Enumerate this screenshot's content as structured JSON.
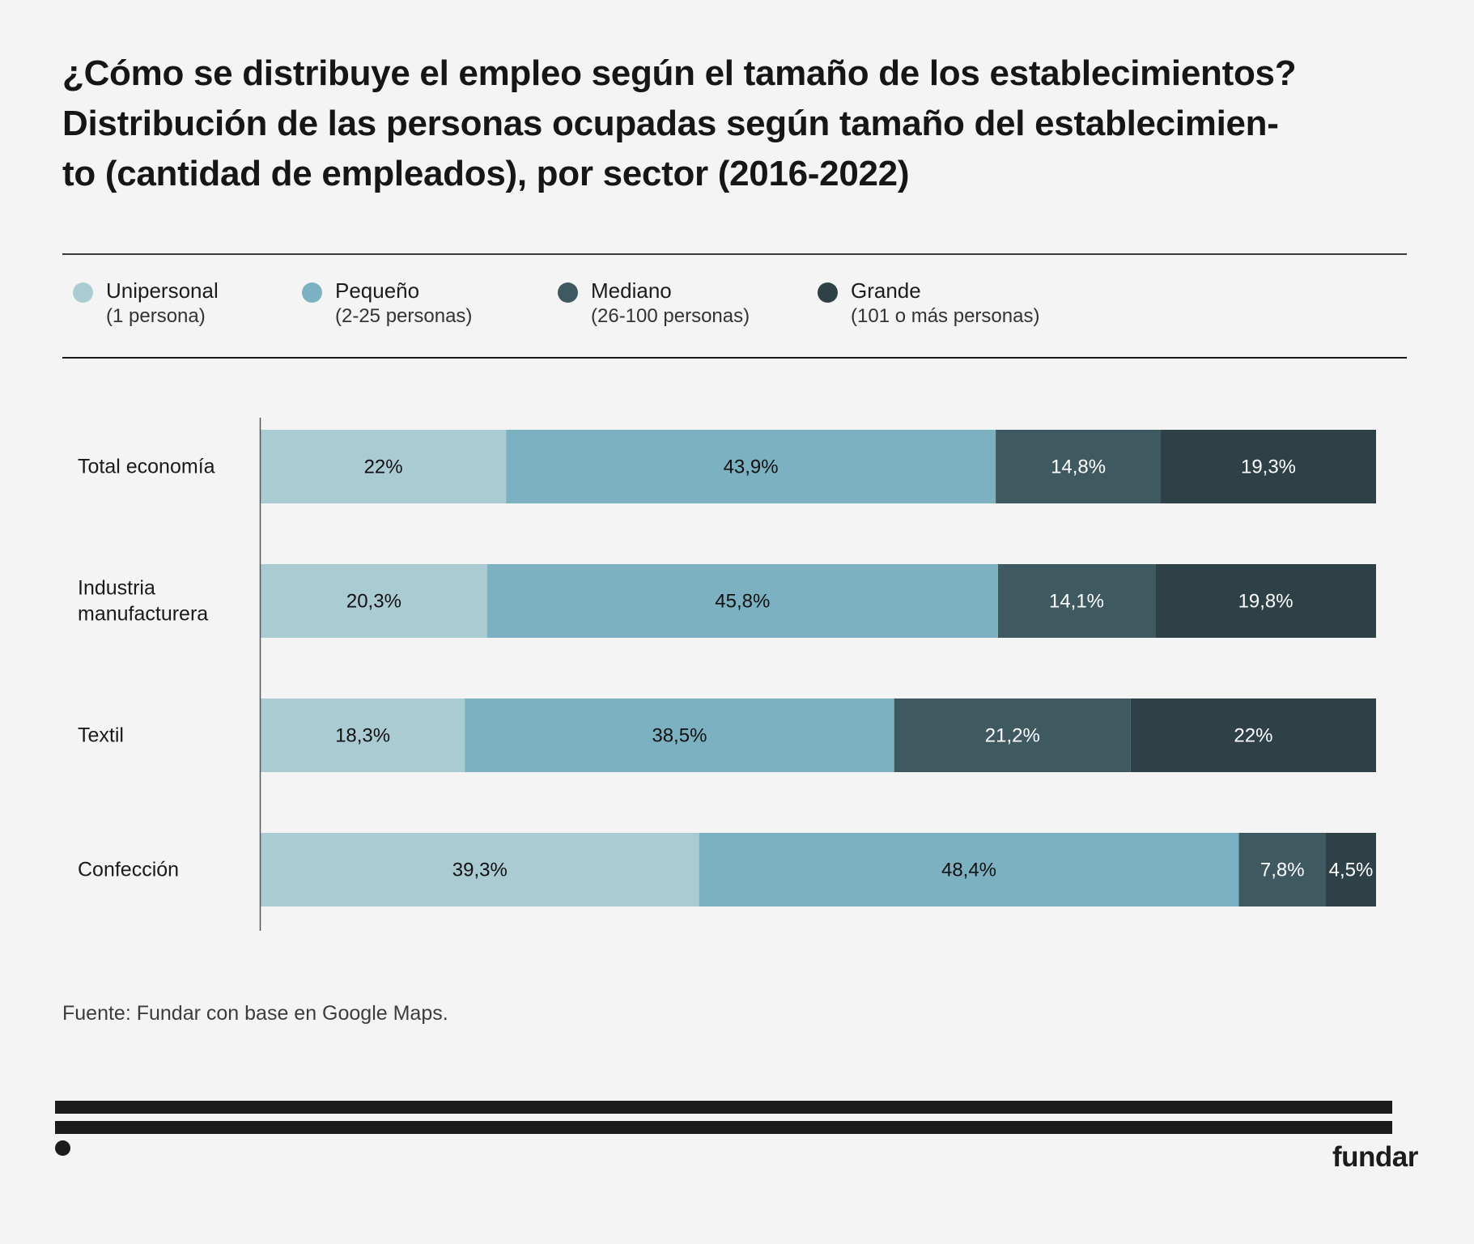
{
  "header": {
    "title_lines": [
      "¿Cómo se distribuye el empleo según el tamaño de los establecimientos?",
      "Distribución de las personas ocupadas según tamaño del establecimien-",
      "to (cantidad de empleados), por sector (2016-2022)"
    ]
  },
  "legend": [
    {
      "label": "Unipersonal",
      "sub": "(1 persona)",
      "color": "#abcbd3"
    },
    {
      "label": "Pequeño",
      "sub": "(2-25 personas)",
      "color": "#7bb1c1"
    },
    {
      "label": "Mediano",
      "sub": "(26-100 personas)",
      "color": "#3f5960"
    },
    {
      "label": "Grande",
      "sub": "(101 o más personas)",
      "color": "#2d4147"
    }
  ],
  "chart_data": {
    "type": "bar",
    "orientation": "horizontal",
    "stacked": true,
    "title": "¿Cómo se distribuye el empleo según el tamaño de los establecimientos?",
    "subtitle": "Distribución de las personas ocupadas según tamaño del establecimiento (cantidad de empleados), por sector (2016-2022)",
    "xlabel": "",
    "ylabel": "",
    "xlim": [
      0,
      100
    ],
    "grid": false,
    "legend_position": "top-left",
    "categories": [
      "Total economía",
      "Industria manufacturera",
      "Textil",
      "Confección"
    ],
    "category_lines": [
      [
        "Total economía"
      ],
      [
        "Industria",
        "manufacturera"
      ],
      [
        "Textil"
      ],
      [
        "Confección"
      ]
    ],
    "series": [
      {
        "name": "Unipersonal (1 persona)",
        "values": [
          22,
          20.3,
          18.3,
          39.3
        ],
        "labels": [
          "22%",
          "20,3%",
          "18,3%",
          "39,3%"
        ],
        "color": "#abcbd3",
        "label_color": "#111111"
      },
      {
        "name": "Pequeño (2-25 personas)",
        "values": [
          43.9,
          45.8,
          38.5,
          48.4
        ],
        "labels": [
          "43,9%",
          "45,8%",
          "38,5%",
          "48,4%"
        ],
        "color": "#7bb1c1",
        "label_color": "#111111"
      },
      {
        "name": "Mediano (26-100 personas)",
        "values": [
          14.8,
          14.1,
          21.2,
          7.8
        ],
        "labels": [
          "14,8%",
          "14,1%",
          "21,2%",
          "7,8%"
        ],
        "color": "#3f5960",
        "label_color": "#ffffff"
      },
      {
        "name": "Grande (101 o más personas)",
        "values": [
          19.3,
          19.8,
          22,
          4.5
        ],
        "labels": [
          "19,3%",
          "19,8%",
          "22%",
          "4,5%"
        ],
        "color": "#2d4147",
        "label_color": "#ffffff"
      }
    ]
  },
  "footer": {
    "source": "Fuente: Fundar con base en Google Maps.",
    "logo": "fundar"
  }
}
